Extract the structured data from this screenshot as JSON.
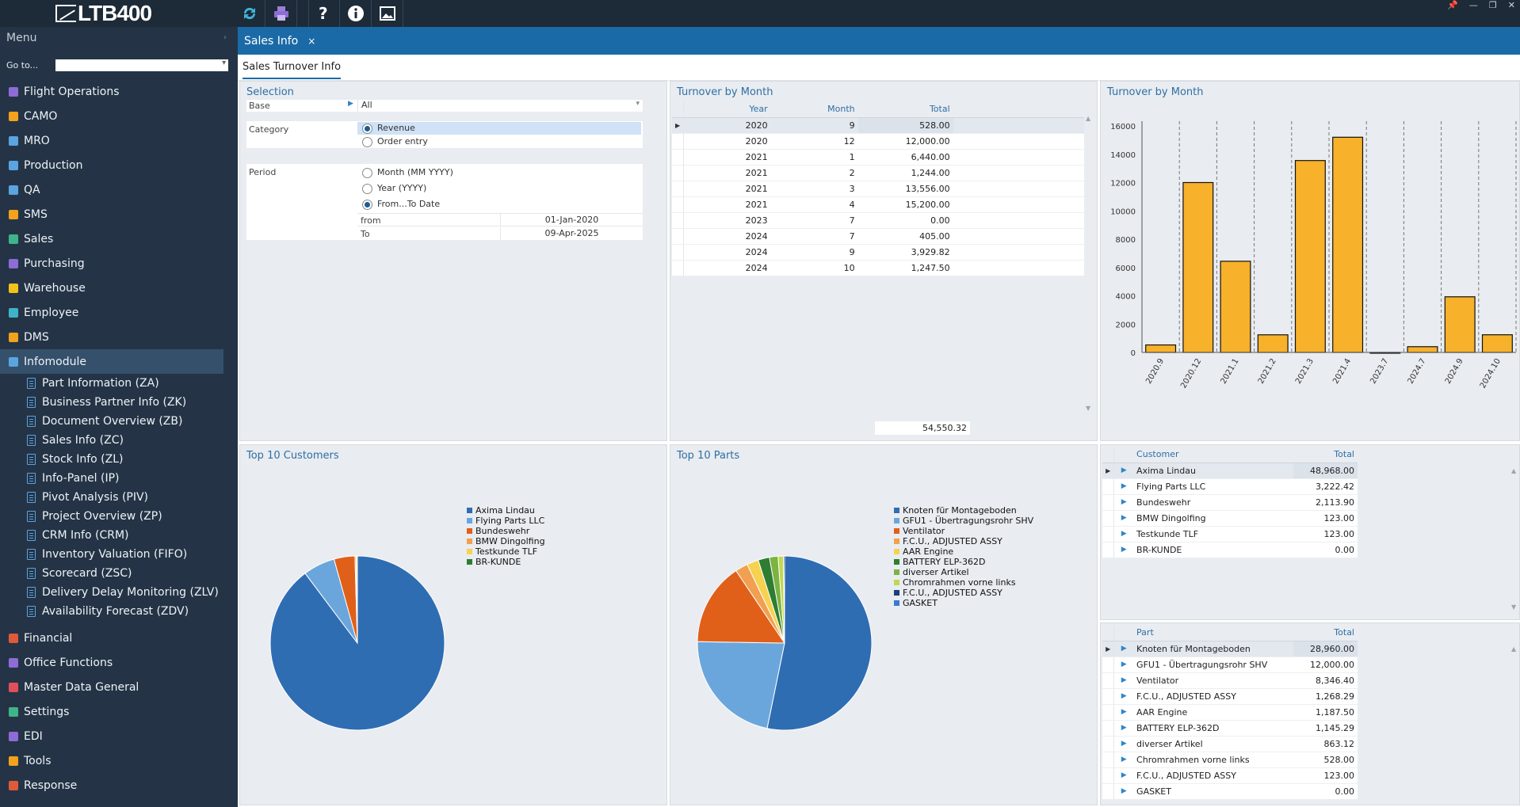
{
  "app": {
    "logo_text": "LTB400"
  },
  "toolbar": {
    "icons": [
      "refresh-icon",
      "print-icon",
      "help-icon",
      "info-icon",
      "image-icon"
    ]
  },
  "sidebar": {
    "menu_label": "Menu",
    "goto_label": "Go to...",
    "items": [
      {
        "label": "Flight Operations",
        "icon": "calendar-icon",
        "color": "#8e6bd6"
      },
      {
        "label": "CAMO",
        "icon": "camo-icon",
        "color": "#f2a21b"
      },
      {
        "label": "MRO",
        "icon": "gear-icon",
        "color": "#5aa4e0"
      },
      {
        "label": "Production",
        "icon": "gears-icon",
        "color": "#5aa4e0"
      },
      {
        "label": "QA",
        "icon": "search-icon",
        "color": "#5aa4e0"
      },
      {
        "label": "SMS",
        "icon": "bell-icon",
        "color": "#f2a21b"
      },
      {
        "label": "Sales",
        "icon": "dollar-icon",
        "color": "#3fb48a"
      },
      {
        "label": "Purchasing",
        "icon": "cart-icon",
        "color": "#8e6bd6"
      },
      {
        "label": "Warehouse",
        "icon": "forklift-icon",
        "color": "#f2c21b"
      },
      {
        "label": "Employee",
        "icon": "employee-icon",
        "color": "#3fb4c8"
      },
      {
        "label": "DMS",
        "icon": "folder-icon",
        "color": "#f2a21b"
      },
      {
        "label": "Infomodule",
        "icon": "chart-icon",
        "color": "#5aa4e0"
      }
    ],
    "subitems": [
      "Part Information (ZA)",
      "Business Partner Info (ZK)",
      "Document Overview (ZB)",
      "Sales Info (ZC)",
      "Stock Info (ZL)",
      "Info-Panel (IP)",
      "Pivot Analysis (PIV)",
      "Project Overview (ZP)",
      "CRM Info (CRM)",
      "Inventory Valuation (FIFO)",
      "Scorecard (ZSC)",
      "Delivery Delay Monitoring (ZLV)",
      "Availability Forecast (ZDV)"
    ],
    "items2": [
      {
        "label": "Financial",
        "icon": "financial-icon",
        "color": "#e05a3a"
      },
      {
        "label": "Office Functions",
        "icon": "paperclip-icon",
        "color": "#8e6bd6"
      },
      {
        "label": "Master Data General",
        "icon": "home-icon",
        "color": "#e0505a"
      },
      {
        "label": "Settings",
        "icon": "monitor-icon",
        "color": "#3fb48a"
      },
      {
        "label": "EDI",
        "icon": "edi-icon",
        "color": "#8e6bd6"
      },
      {
        "label": "Tools",
        "icon": "tools-icon",
        "color": "#f2a21b"
      },
      {
        "label": "Response",
        "icon": "response-icon",
        "color": "#e05a3a"
      }
    ]
  },
  "tabs": {
    "active": "Sales Info",
    "close": "×",
    "subtab": "Sales Turnover Info"
  },
  "selection": {
    "title": "Selection",
    "base_label": "Base",
    "base_value": "All",
    "category_label": "Category",
    "category_options": [
      "Revenue",
      "Order entry"
    ],
    "period_label": "Period",
    "period_options": [
      "Month (MM YYYY)",
      "Year (YYYY)",
      "From...To Date"
    ],
    "from_label": "from",
    "from_value": "01-Jan-2020",
    "to_label": "To",
    "to_value": "09-Apr-2025"
  },
  "turnover_table": {
    "title": "Turnover by Month",
    "headers": [
      "Year",
      "Month",
      "Total"
    ],
    "rows": [
      [
        "2020",
        "9",
        "528.00"
      ],
      [
        "2020",
        "12",
        "12,000.00"
      ],
      [
        "2021",
        "1",
        "6,440.00"
      ],
      [
        "2021",
        "2",
        "1,244.00"
      ],
      [
        "2021",
        "3",
        "13,556.00"
      ],
      [
        "2021",
        "4",
        "15,200.00"
      ],
      [
        "2023",
        "7",
        "0.00"
      ],
      [
        "2024",
        "7",
        "405.00"
      ],
      [
        "2024",
        "9",
        "3,929.82"
      ],
      [
        "2024",
        "10",
        "1,247.50"
      ]
    ],
    "sum": "54,550.32"
  },
  "chart_data": [
    {
      "type": "bar",
      "title": "Turnover by Month",
      "categories": [
        "2020.9",
        "2020.12",
        "2021.1",
        "2021.2",
        "2021.3",
        "2021.4",
        "2023.7",
        "2024.7",
        "2024.9",
        "2024.10"
      ],
      "values": [
        528,
        12000,
        6440,
        1244,
        13556,
        15200,
        0,
        405,
        3929.82,
        1247.5
      ],
      "ylim": [
        0,
        16000
      ],
      "yticks": [
        0,
        2000,
        4000,
        6000,
        8000,
        10000,
        12000,
        14000,
        16000
      ],
      "color": "#f7b12a"
    },
    {
      "type": "pie",
      "title": "Top 10 Customers",
      "labels": [
        "Axima Lindau",
        "Flying Parts LLC",
        "Bundeswehr",
        "BMW Dingolfing",
        "Testkunde TLF",
        "BR-KUNDE"
      ],
      "values": [
        48968,
        3222.42,
        2113.9,
        123,
        123,
        0
      ],
      "colors": [
        "#2f6db3",
        "#6aa6dc",
        "#e0601a",
        "#f0a050",
        "#f7d250",
        "#2e7d32"
      ]
    },
    {
      "type": "pie",
      "title": "Top 10 Parts",
      "labels": [
        "Knoten für Montageboden",
        "GFU1 - Übertragungsrohr SHV",
        "Ventilator",
        "F.C.U., ADJUSTED ASSY",
        "AAR Engine",
        "BATTERY ELP-362D",
        "diverser Artikel",
        "Chromrahmen vorne links",
        "F.C.U., ADJUSTED ASSY",
        "GASKET"
      ],
      "values": [
        28960,
        12000,
        8346.4,
        1268.29,
        1187.5,
        1145.29,
        863.12,
        528,
        123,
        0
      ],
      "colors": [
        "#2f6db3",
        "#6aa6dc",
        "#e0601a",
        "#f0a050",
        "#f7d250",
        "#2e7d32",
        "#7cb342",
        "#c0d850",
        "#1a3f7a",
        "#3a7ad0"
      ]
    }
  ],
  "customers": {
    "headers": [
      "Customer",
      "Total"
    ],
    "rows": [
      [
        "Axima Lindau",
        "48,968.00"
      ],
      [
        "Flying Parts LLC",
        "3,222.42"
      ],
      [
        "Bundeswehr",
        "2,113.90"
      ],
      [
        "BMW Dingolfing",
        "123.00"
      ],
      [
        "Testkunde TLF",
        "123.00"
      ],
      [
        "BR-KUNDE",
        "0.00"
      ]
    ]
  },
  "parts": {
    "headers": [
      "Part",
      "Total"
    ],
    "rows": [
      [
        "Knoten für Montageboden",
        "28,960.00"
      ],
      [
        "GFU1 - Übertragungsrohr SHV",
        "12,000.00"
      ],
      [
        "Ventilator",
        "8,346.40"
      ],
      [
        "F.C.U., ADJUSTED ASSY",
        "1,268.29"
      ],
      [
        "AAR Engine",
        "1,187.50"
      ],
      [
        "BATTERY ELP-362D",
        "1,145.29"
      ],
      [
        "diverser Artikel",
        "863.12"
      ],
      [
        "Chromrahmen vorne links",
        "528.00"
      ],
      [
        "F.C.U., ADJUSTED ASSY",
        "123.00"
      ],
      [
        "GASKET",
        "0.00"
      ]
    ]
  }
}
